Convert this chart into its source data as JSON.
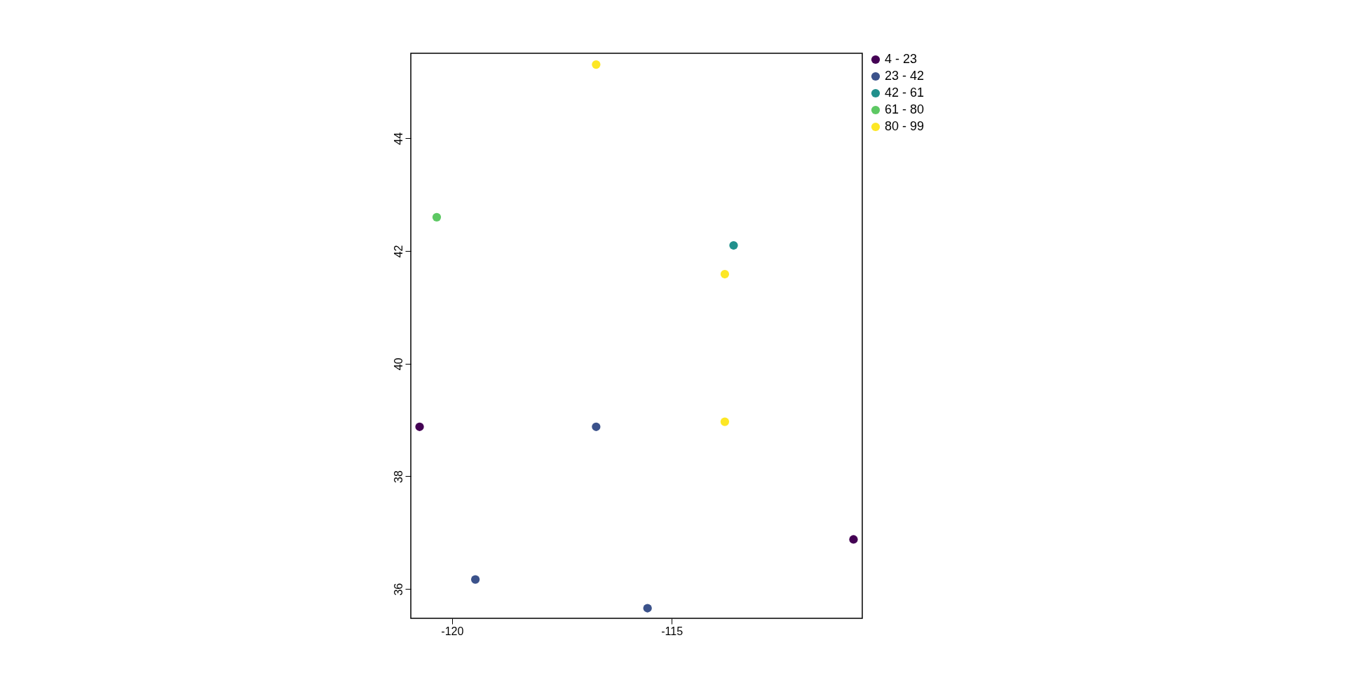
{
  "chart_data": {
    "type": "scatter",
    "marker": "circle",
    "grid": false,
    "legend": "top right",
    "xlim": [
      -120.94,
      -110.66
    ],
    "ylim": [
      35.48,
      45.51
    ],
    "xticks": [
      -120,
      -115
    ],
    "yticks": [
      36,
      38,
      40,
      42,
      44
    ],
    "series": [
      {
        "name": "4 - 23",
        "color": "#440154",
        "x": [
          -120.74,
          -110.86
        ],
        "values": [
          38.88,
          36.88
        ]
      },
      {
        "name": "23 - 42",
        "color": "#3b528b",
        "x": [
          -116.72,
          -119.47,
          -115.55
        ],
        "values": [
          38.88,
          36.17,
          35.66
        ]
      },
      {
        "name": "42 - 61",
        "color": "#21908c",
        "x": [
          -113.59
        ],
        "values": [
          42.1
        ]
      },
      {
        "name": "61 - 80",
        "color": "#5dc863",
        "x": [
          -120.35
        ],
        "values": [
          42.6
        ]
      },
      {
        "name": "80 - 99",
        "color": "#fde725",
        "x": [
          -116.72,
          -113.79,
          -113.79
        ],
        "values": [
          45.31,
          41.59,
          38.97
        ]
      }
    ]
  }
}
